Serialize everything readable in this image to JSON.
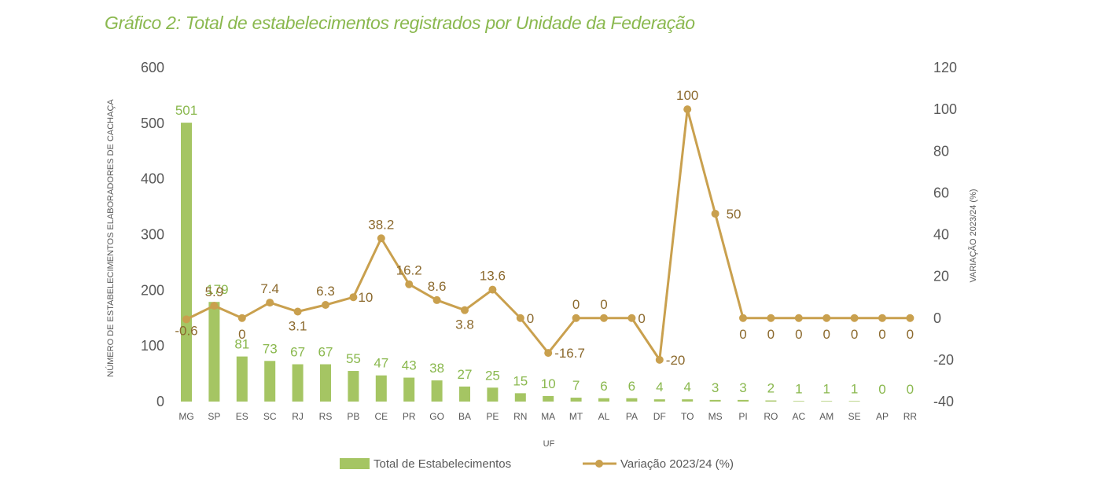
{
  "chart_data": {
    "type": "bar+line",
    "title": "Gráfico 2: Total de estabelecimentos registrados por Unidade da Federação",
    "xlabel": "UF",
    "ylabel": "NÚMERO DE ESTABELECIMENTOS ELABORADORES DE CACHAÇA",
    "y2label": "VARIAÇÃO 2023/24 (%)",
    "ylim": [
      0,
      600
    ],
    "y2lim": [
      -40,
      120
    ],
    "yticks": [
      "0",
      "100",
      "200",
      "300",
      "400",
      "500",
      "600"
    ],
    "y2ticks": [
      "-40",
      "-20",
      "0",
      "20",
      "40",
      "60",
      "80",
      "100",
      "120"
    ],
    "categories": [
      "MG",
      "SP",
      "ES",
      "SC",
      "RJ",
      "RS",
      "PB",
      "CE",
      "PR",
      "GO",
      "BA",
      "PE",
      "RN",
      "MA",
      "MT",
      "AL",
      "PA",
      "DF",
      "TO",
      "MS",
      "PI",
      "RO",
      "AC",
      "AM",
      "SE",
      "AP",
      "RR"
    ],
    "series": [
      {
        "name": "Total de Estabelecimentos",
        "type": "bar",
        "color": "#a5c563",
        "values": [
          501,
          179,
          81,
          73,
          67,
          67,
          55,
          47,
          43,
          38,
          27,
          25,
          15,
          10,
          7,
          6,
          6,
          4,
          4,
          3,
          3,
          2,
          1,
          1,
          1,
          0,
          0
        ],
        "labels": [
          "501",
          "179",
          "81",
          "73",
          "67",
          "67",
          "55",
          "47",
          "43",
          "38",
          "27",
          "25",
          "15",
          "10",
          "7",
          "6",
          "6",
          "4",
          "4",
          "3",
          "3",
          "2",
          "1",
          "1",
          "1",
          "0",
          "0"
        ]
      },
      {
        "name": "Variação 2023/24 (%)",
        "type": "line",
        "color": "#c9a04e",
        "values": [
          -0.6,
          5.9,
          0,
          7.4,
          3.1,
          6.3,
          10,
          38.2,
          16.2,
          8.6,
          3.8,
          13.6,
          0,
          -16.7,
          0,
          0,
          0,
          -20,
          100,
          50,
          0,
          0,
          0,
          0,
          0,
          0,
          0
        ],
        "labels": [
          "-0.6",
          "5.9",
          "0",
          "7.4",
          "3.1",
          "6.3",
          "10",
          "38.2",
          "16.2",
          "8.6",
          "3.8",
          "13.6",
          "0",
          "-16.7",
          "0",
          "0",
          "0",
          "-20",
          "100",
          "50",
          "0",
          "0",
          "0",
          "0",
          "0",
          "0",
          "0"
        ]
      }
    ],
    "legend_position": "bottom"
  }
}
